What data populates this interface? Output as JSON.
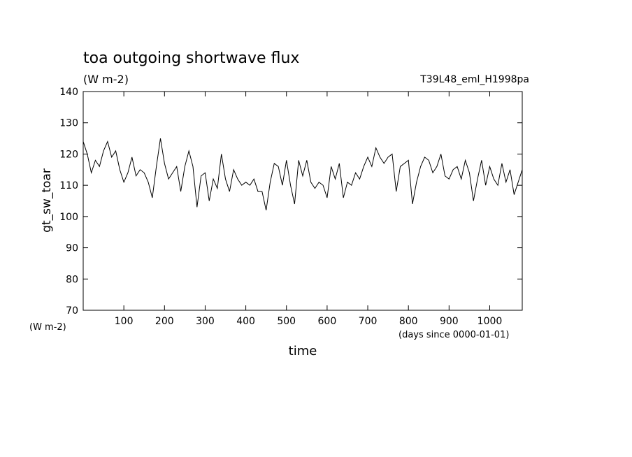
{
  "chart_data": {
    "type": "line",
    "title": "toa outgoing shortwave flux",
    "subtitle": "(W m-2)",
    "annotation": "T39L48_eml_H1998pa",
    "ylabel": "gt_sw_toar",
    "yunits": "(W m-2)",
    "xlabel": "time",
    "xunits": "(days since 0000-01-01)",
    "color": "#000000",
    "xlim": [
      0,
      1080
    ],
    "ylim": [
      70,
      140
    ],
    "xticks": [
      100,
      200,
      300,
      400,
      500,
      600,
      700,
      800,
      900,
      1000
    ],
    "yticks": [
      70,
      80,
      90,
      100,
      110,
      120,
      130,
      140
    ],
    "x": [
      0,
      10,
      20,
      30,
      40,
      50,
      60,
      70,
      80,
      90,
      100,
      110,
      120,
      130,
      140,
      150,
      160,
      170,
      180,
      190,
      200,
      210,
      220,
      230,
      240,
      250,
      260,
      270,
      280,
      290,
      300,
      310,
      320,
      330,
      340,
      350,
      360,
      370,
      380,
      390,
      400,
      410,
      420,
      430,
      440,
      450,
      460,
      470,
      480,
      490,
      500,
      510,
      520,
      530,
      540,
      550,
      560,
      570,
      580,
      590,
      600,
      610,
      620,
      630,
      640,
      650,
      660,
      670,
      680,
      690,
      700,
      710,
      720,
      730,
      740,
      750,
      760,
      770,
      780,
      790,
      800,
      810,
      820,
      830,
      840,
      850,
      860,
      870,
      880,
      890,
      900,
      910,
      920,
      930,
      940,
      950,
      960,
      970,
      980,
      990,
      1000,
      1010,
      1020,
      1030,
      1040,
      1050,
      1060,
      1070,
      1080
    ],
    "values": [
      124,
      120,
      114,
      118,
      116,
      121,
      124,
      119,
      121,
      115,
      111,
      114,
      119,
      113,
      115,
      114,
      111,
      106,
      116,
      125,
      117,
      112,
      114,
      116,
      108,
      116,
      121,
      116,
      103,
      113,
      114,
      105,
      112,
      109,
      120,
      112,
      108,
      115,
      112,
      110,
      111,
      110,
      112,
      108,
      108,
      102,
      111,
      117,
      116,
      110,
      118,
      110,
      104,
      118,
      113,
      118,
      111,
      109,
      111,
      110,
      106,
      116,
      112,
      117,
      106,
      111,
      110,
      114,
      112,
      116,
      119,
      116,
      122,
      119,
      117,
      119,
      120,
      108,
      116,
      117,
      118,
      104,
      111,
      116,
      119,
      118,
      114,
      116,
      120,
      113,
      112,
      115,
      116,
      112,
      118,
      114,
      105,
      112,
      118,
      110,
      116,
      112,
      110,
      117,
      111,
      115,
      107,
      111,
      115
    ]
  }
}
